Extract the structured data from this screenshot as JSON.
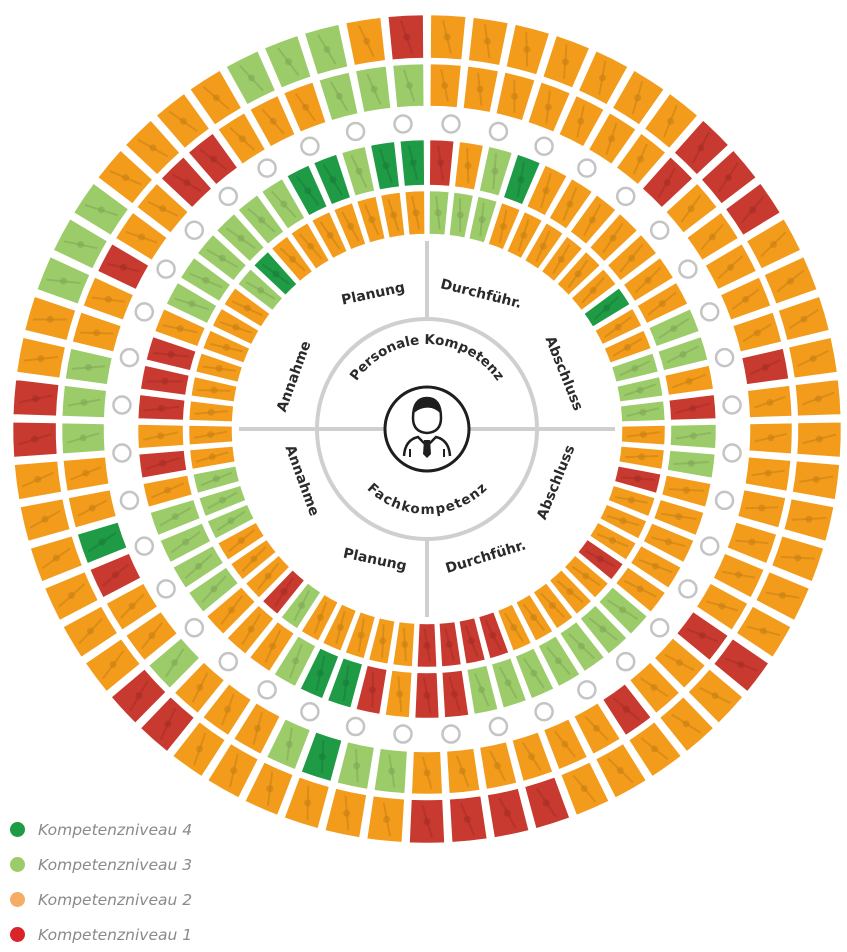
{
  "colors": {
    "level4": "#1f9a45",
    "level3": "#9ccc6a",
    "level2": "#f39c1b",
    "level1": "#c8392f",
    "legend2_dot": "#f5ad66",
    "legend1_dot": "#d9252a"
  },
  "center": {
    "upper_label": "Personale Kompetenz",
    "lower_label": "Fachkompetenz",
    "icon": "businessman-icon"
  },
  "sectors": {
    "upper": [
      "Planung",
      "Durchführ.",
      "Abschluss",
      "Annahme"
    ],
    "lower": [
      "Abschluss",
      "Durchführ.",
      "Planung",
      "Annahme"
    ]
  },
  "rings": {
    "outer_a": "2222222111222222222221222221111222222112222221122333222233321",
    "outer_b": "2222222122222122222221221222222334322232214223332212211222333",
    "inner_a": "1234222222233213322222333333311214432223333212111233333344344",
    "inner_b": "3332222224223332212221222221111222223122233322222222342222222"
  },
  "legend": [
    {
      "label": "Kompetenzniveau 4",
      "color": "#1f9a45"
    },
    {
      "label": "Kompetenzniveau 3",
      "color": "#9ccc6a"
    },
    {
      "label": "Kompetenzniveau 2",
      "color": "#f5ad66"
    },
    {
      "label": "Kompetenzniveau 1",
      "color": "#d9252a"
    }
  ]
}
